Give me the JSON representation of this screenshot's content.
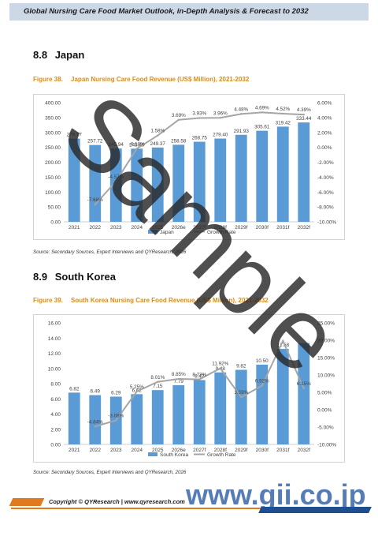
{
  "header": {
    "title": "Global Nursing Care Food Market Outlook, in-Depth Analysis & Forecast to 2032"
  },
  "sections": [
    {
      "number": "8.8",
      "title": "Japan",
      "figure_number": "Figure 38.",
      "figure_title": "Japan Nursing Care Food Revenue (US$ Million), 2021-2032",
      "source": "Source: Secondary Sources, Expert Interviews and QYResearch, 2026"
    },
    {
      "number": "8.9",
      "title": "South Korea",
      "figure_number": "Figure 39.",
      "figure_title": "South Korea Nursing Care Food Revenue (US$ Million), 2021-2032",
      "source": "Source: Secondary Sources, Expert Interviews and QYResearch, 2026"
    }
  ],
  "footer": {
    "text": "Copyright © QYResearch | www.qyresearch.com"
  },
  "watermarks": {
    "sample": "Sample",
    "gii": "www.gii.co.jp"
  },
  "colors": {
    "bar": "#5b9bd5",
    "line": "#a5a5a5",
    "caption": "#e08a12",
    "footer_orange": "#e07a1f",
    "footer_blue": "#1f4e8c"
  },
  "chart_data": [
    {
      "type": "bar",
      "categories": [
        "2021",
        "2022",
        "2023",
        "2024",
        "2025",
        "2026e",
        "2027f",
        "2028f",
        "2029f",
        "2030f",
        "2031f",
        "2032f"
      ],
      "series": [
        {
          "name": "Japan",
          "values": [
            279.17,
            257.72,
            245.94,
            245.49,
            249.37,
            258.58,
            268.75,
            279.4,
            291.93,
            305.61,
            319.42,
            333.44
          ],
          "labels": [
            "279.17",
            "257.72",
            "245.94",
            "245.49",
            "249.37",
            "258.58",
            "268.75",
            "279.40",
            "291.93",
            "305.61",
            "319.42",
            "333.44"
          ]
        },
        {
          "name": "Growth Rate",
          "type": "line",
          "axis": "right",
          "values": [
            null,
            -7.68,
            -4.57,
            -0.18,
            1.58,
            3.69,
            3.93,
            3.96,
            4.48,
            4.69,
            4.52,
            4.39
          ],
          "labels": [
            "",
            "-7.68%",
            "-4.57%",
            "-0.18%",
            "1.58%",
            "3.69%",
            "3.93%",
            "3.96%",
            "4.48%",
            "4.69%",
            "4.52%",
            "4.39%"
          ]
        }
      ],
      "y_ticks": [
        "0.00",
        "50.00",
        "100.00",
        "150.00",
        "200.00",
        "250.00",
        "300.00",
        "350.00",
        "400.00"
      ],
      "ylim": [
        0,
        400
      ],
      "y2_ticks": [
        "-10.00%",
        "-8.00%",
        "-6.00%",
        "-4.00%",
        "-2.00%",
        "0.00%",
        "2.00%",
        "4.00%",
        "6.00%"
      ],
      "y2lim": [
        -10,
        6
      ],
      "legend": [
        "Japan",
        "Growth Rate"
      ],
      "legend_position": "bottom",
      "grid": false
    },
    {
      "type": "bar",
      "categories": [
        "2021",
        "2022",
        "2023",
        "2024",
        "2025",
        "2026e",
        "2027f",
        "2028f",
        "2029f",
        "2030f",
        "2031f",
        "2032f"
      ],
      "series": [
        {
          "name": "South Korea",
          "values": [
            6.82,
            6.49,
            6.29,
            6.62,
            7.15,
            7.79,
            8.47,
            9.48,
            9.82,
            10.5,
            12.58,
            13.35
          ],
          "labels": [
            "6.82",
            "6.49",
            "6.29",
            "6.62",
            "7.15",
            "7.79",
            "8.47",
            "9.48",
            "9.82",
            "10.50",
            "12.58",
            ""
          ]
        },
        {
          "name": "Growth Rate",
          "type": "line",
          "axis": "right",
          "values": [
            null,
            -4.84,
            -3.08,
            5.25,
            8.01,
            8.85,
            8.73,
            11.92,
            3.59,
            6.92,
            19.8,
            6.15
          ],
          "labels": [
            "",
            "-4.84%",
            "-3.08%",
            "5.25%",
            "8.01%",
            "8.85%",
            "8.73%",
            "11.92%",
            "3.59%",
            "6.92%",
            "",
            "6.15%"
          ]
        }
      ],
      "y_ticks": [
        "0.00",
        "2.00",
        "4.00",
        "6.00",
        "8.00",
        "10.00",
        "12.00",
        "14.00",
        "16.00"
      ],
      "ylim": [
        0,
        16
      ],
      "y2_ticks": [
        "-10.00%",
        "-5.00%",
        "0.00%",
        "5.00%",
        "10.00%",
        "15.00%",
        "20.00%",
        "25.00%"
      ],
      "y2lim": [
        -10,
        25
      ],
      "legend": [
        "South Korea",
        "Growth Rate"
      ],
      "legend_position": "bottom",
      "grid": false
    }
  ]
}
